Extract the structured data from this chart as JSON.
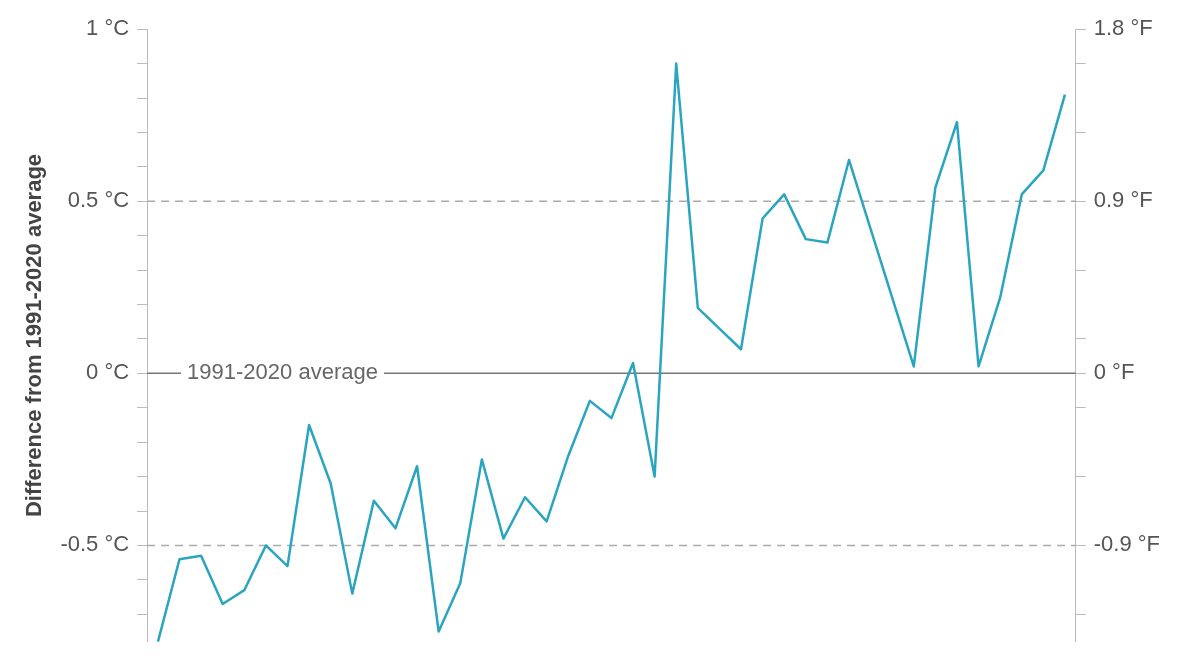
{
  "chart_data": {
    "type": "line",
    "ylabel": "Difference from 1991-2020 average",
    "categories": [
      null,
      null,
      null,
      null,
      null,
      null,
      null,
      null,
      null,
      null,
      null,
      null,
      null,
      null,
      null,
      null,
      null,
      null,
      null,
      null,
      null,
      null,
      null,
      null,
      null,
      null,
      null,
      null,
      null,
      null,
      null,
      null,
      null,
      null,
      null,
      null,
      null,
      null,
      null,
      null,
      null,
      null,
      null
    ],
    "series": [
      {
        "color": "#2aa5c0",
        "values": [
          -0.78,
          -0.54,
          -0.53,
          -0.67,
          -0.63,
          -0.5,
          -0.56,
          -0.15,
          -0.32,
          -0.64,
          -0.37,
          -0.45,
          -0.27,
          -0.75,
          -0.61,
          -0.25,
          -0.48,
          -0.36,
          -0.43,
          -0.24,
          -0.08,
          -0.13,
          0.03,
          -0.3,
          0.9,
          0.19,
          0.13,
          0.07,
          0.45,
          0.52,
          0.39,
          0.38,
          0.62,
          0.42,
          0.22,
          0.02,
          0.54,
          0.73,
          0.02,
          0.22,
          0.52,
          0.59,
          0.81
        ]
      }
    ],
    "ylim": [
      -0.78,
      1
    ],
    "yticks": [
      {
        "value": 1,
        "label": "1 °C"
      },
      {
        "value": 0.9,
        "label": null
      },
      {
        "value": 0.8,
        "label": null
      },
      {
        "value": 0.7,
        "label": null
      },
      {
        "value": 0.6,
        "label": null
      },
      {
        "value": 0.5,
        "label": "0.5 °C"
      },
      {
        "value": 0.4,
        "label": null
      },
      {
        "value": 0.3,
        "label": null
      },
      {
        "value": 0.2,
        "label": null
      },
      {
        "value": 0.1,
        "label": null
      },
      {
        "value": 0,
        "label": "0 °C"
      },
      {
        "value": -0.1,
        "label": null
      },
      {
        "value": -0.2,
        "label": null
      },
      {
        "value": -0.3,
        "label": null
      },
      {
        "value": -0.4,
        "label": null
      },
      {
        "value": -0.5,
        "label": "-0.5 °C"
      },
      {
        "value": -0.6,
        "label": null
      },
      {
        "value": -0.7,
        "label": null
      }
    ],
    "y2lim": [
      -1.404,
      1.8
    ],
    "y2ticks": [
      {
        "value": 1.8,
        "label": "1.8 °F"
      },
      {
        "value": 1.62,
        "label": null
      },
      {
        "value": 1.26,
        "label": null
      },
      {
        "value": 0.9,
        "label": "0.9 °F"
      },
      {
        "value": 0.54,
        "label": null
      },
      {
        "value": 0.18,
        "label": null
      },
      {
        "value": 0,
        "label": "0 °F"
      },
      {
        "value": -0.18,
        "label": null
      },
      {
        "value": -0.54,
        "label": null
      },
      {
        "value": -0.9,
        "label": "-0.9 °F"
      },
      {
        "value": -1.26,
        "label": null
      }
    ],
    "ref_lines": [
      {
        "axis": "y",
        "value": 0,
        "label": "1991-2020 average",
        "color": "#777777",
        "line_style": "solid"
      },
      {
        "axis": "y",
        "value": 0.5,
        "label": null,
        "color": "#aaaaaa",
        "line_style": "dashed"
      },
      {
        "axis": "y",
        "value": -0.5,
        "label": null,
        "color": "#aaaaaa",
        "line_style": "dashed"
      }
    ],
    "grid": false,
    "legend": false,
    "marker": "none",
    "line_style": "solid"
  }
}
